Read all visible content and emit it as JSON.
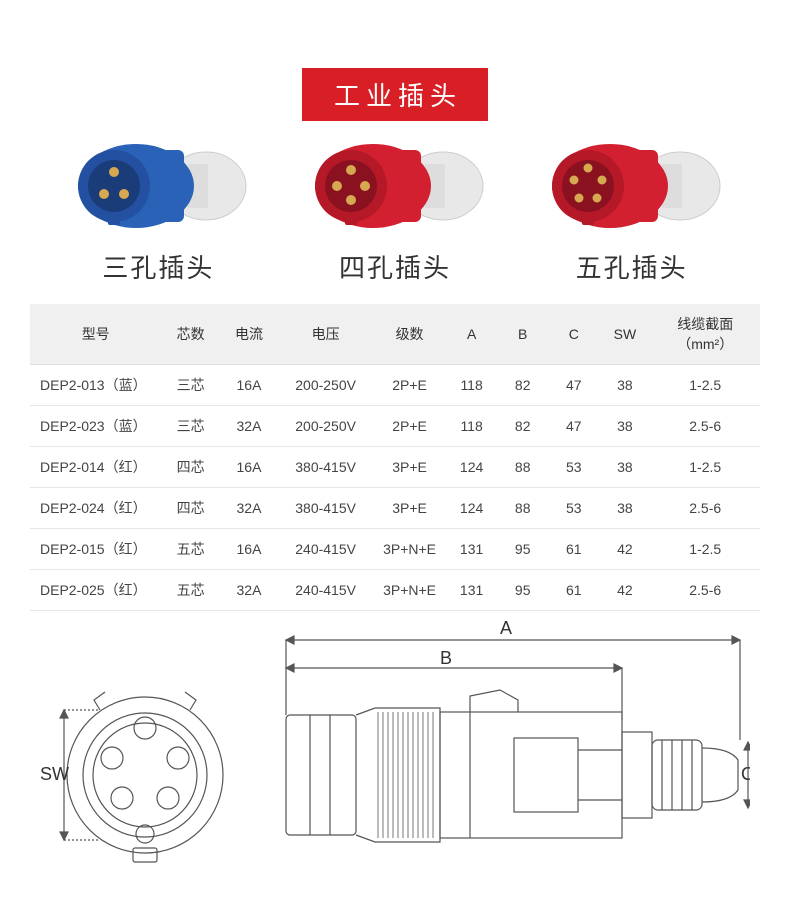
{
  "title": "工业插头",
  "plugs": [
    {
      "label": "三孔插头",
      "body_color": "#2a62b8",
      "pin_count": 3
    },
    {
      "label": "四孔插头",
      "body_color": "#d22030",
      "pin_count": 4
    },
    {
      "label": "五孔插头",
      "body_color": "#d22030",
      "pin_count": 5
    }
  ],
  "table": {
    "headers": [
      "型号",
      "芯数",
      "电流",
      "电压",
      "级数",
      "A",
      "B",
      "C",
      "SW",
      "线缆截面（mm²）"
    ],
    "col_widths": [
      "18%",
      "8%",
      "8%",
      "13%",
      "10%",
      "7%",
      "7%",
      "7%",
      "7%",
      "15%"
    ],
    "rows": [
      [
        "DEP2-013（蓝）",
        "三芯",
        "16A",
        "200-250V",
        "2P+E",
        "118",
        "82",
        "47",
        "38",
        "1-2.5"
      ],
      [
        "DEP2-023（蓝）",
        "三芯",
        "32A",
        "200-250V",
        "2P+E",
        "118",
        "82",
        "47",
        "38",
        "2.5-6"
      ],
      [
        "DEP2-014（红）",
        "四芯",
        "16A",
        "380-415V",
        "3P+E",
        "124",
        "88",
        "53",
        "38",
        "1-2.5"
      ],
      [
        "DEP2-024（红）",
        "四芯",
        "32A",
        "380-415V",
        "3P+E",
        "124",
        "88",
        "53",
        "38",
        "2.5-6"
      ],
      [
        "DEP2-015（红）",
        "五芯",
        "16A",
        "240-415V",
        "3P+N+E",
        "131",
        "95",
        "61",
        "42",
        "1-2.5"
      ],
      [
        "DEP2-025（红）",
        "五芯",
        "32A",
        "240-415V",
        "3P+N+E",
        "131",
        "95",
        "61",
        "42",
        "2.5-6"
      ]
    ]
  },
  "diagram_labels": {
    "A": "A",
    "B": "B",
    "C": "C",
    "SW": "SW"
  },
  "styling": {
    "title_bg": "#d91f26",
    "title_color": "#ffffff",
    "header_bg": "#f0f0f0",
    "border_color": "#e6e6e6",
    "text_color": "#333333",
    "label_fontsize": 26,
    "table_fontsize": 14,
    "diagram_stroke": "#555555",
    "pin_color": "#d6a850"
  }
}
